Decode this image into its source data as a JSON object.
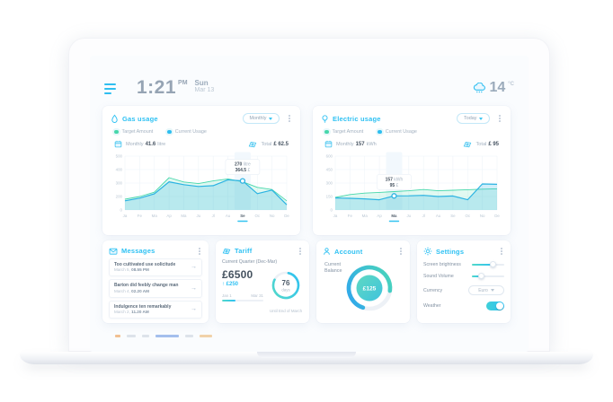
{
  "header": {
    "time": "1:21",
    "meridiem": "PM",
    "day": "Sun",
    "date": "Mar 13",
    "temperature": "14",
    "temp_unit": "°C"
  },
  "gas_panel": {
    "title": "Gas usage",
    "period_selector": "Monthly",
    "legend": [
      {
        "label": "Target Amount",
        "color": "#47d7ab"
      },
      {
        "label": "Current Usage",
        "color": "#2ebef0"
      }
    ],
    "summary": {
      "period_label": "Monthly",
      "period_value": "41.6",
      "period_unit": "litre",
      "total_label": "Total",
      "total_value": "£ 62.5"
    },
    "chart_data": {
      "type": "area",
      "title": "Gas usage by month",
      "categories": [
        "Ja",
        "Fe",
        "Ma",
        "Ap",
        "Ma",
        "Ju",
        "Jl",
        "Au",
        "Se",
        "Oc",
        "No",
        "De"
      ],
      "series": [
        {
          "name": "Target Amount",
          "color": "#47d7ab",
          "values": [
            100,
            125,
            165,
            300,
            260,
            245,
            270,
            288,
            262,
            210,
            190,
            85
          ]
        },
        {
          "name": "Current Usage",
          "color": "#2bb3e2",
          "values": [
            85,
            110,
            150,
            262,
            235,
            218,
            226,
            280,
            270,
            152,
            185,
            48
          ]
        }
      ],
      "ylim": [
        0,
        500
      ],
      "yticks": [
        "500",
        "400",
        "300",
        "200",
        "0"
      ],
      "grid": true,
      "selected_index": 8,
      "selected_category": "Se",
      "tooltip": {
        "line1_value": "270",
        "line1_unit": "litre",
        "line2_value": "364.5",
        "line2_unit": "£"
      }
    }
  },
  "electric_panel": {
    "title": "Electric usage",
    "period_selector": "Today",
    "legend": [
      {
        "label": "Target Amount",
        "color": "#47d7ab"
      },
      {
        "label": "Current Usage",
        "color": "#2ebef0"
      }
    ],
    "summary": {
      "period_label": "Monthly",
      "period_value": "157",
      "period_unit": "kWh",
      "total_label": "Total",
      "total_value": "£ 95"
    },
    "chart_data": {
      "type": "area",
      "title": "Electric usage by month",
      "categories": [
        "Ja",
        "Fe",
        "Ma",
        "Ap",
        "Ma",
        "Ju",
        "Jl",
        "Au",
        "Se",
        "Oc",
        "No",
        "De"
      ],
      "series": [
        {
          "name": "Target Amount",
          "color": "#47d7ab",
          "values": [
            140,
            172,
            188,
            196,
            205,
            214,
            228,
            214,
            220,
            226,
            232,
            236
          ]
        },
        {
          "name": "Current Usage",
          "color": "#2bb3e2",
          "values": [
            134,
            130,
            124,
            114,
            157,
            158,
            163,
            150,
            156,
            114,
            290,
            286
          ]
        }
      ],
      "ylim": [
        0,
        600
      ],
      "yticks": [
        "600",
        "450",
        "300",
        "150",
        "0"
      ],
      "grid": true,
      "selected_index": 4,
      "selected_category": "Ma",
      "tooltip": {
        "line1_value": "157",
        "line1_unit": "kWh",
        "line2_value": "95",
        "line2_unit": "£"
      }
    }
  },
  "messages_panel": {
    "title": "Messages",
    "items": [
      {
        "title": "Too cultivated use solicitude",
        "date": "March 5,",
        "time": "08.55 PM"
      },
      {
        "title": "Barton did feebly change man",
        "date": "March 4,",
        "time": "02.20 AM"
      },
      {
        "title": "Indulgence ten remarkably",
        "date": "March 2,",
        "time": "11.20 AM"
      }
    ]
  },
  "tariff_panel": {
    "title": "Tariff",
    "subtitle": "Current Quarter (Dec-Mar)",
    "amount": "£6500",
    "delta": "↑ £250",
    "range_start": "Jan 1",
    "range_end": "Mar 31",
    "range_progress": 0.33,
    "gauge": {
      "value": "76",
      "unit": "days",
      "progress": 0.79,
      "caption": "Until End of March"
    }
  },
  "account_panel": {
    "title": "Account",
    "balance_label_1": "Current",
    "balance_label_2": "Balance",
    "balance": "£125",
    "progress": 0.72
  },
  "settings_panel": {
    "title": "Settings",
    "rows": [
      {
        "label": "Screen brightness",
        "type": "slider",
        "value": 0.66
      },
      {
        "label": "Sound Volume",
        "type": "slider",
        "value": 0.3
      },
      {
        "label": "Currency",
        "type": "select",
        "value": "Euro"
      },
      {
        "label": "Weather",
        "type": "toggle",
        "value": true
      }
    ]
  },
  "colors": {
    "accent": "#2ebef0",
    "green": "#47d7ab",
    "text_dark": "#45525f",
    "text_gray": "#a3b1c0"
  }
}
